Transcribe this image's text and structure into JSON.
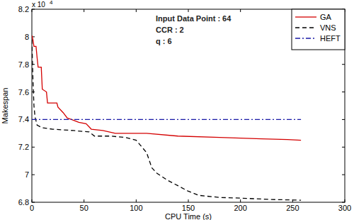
{
  "chart_data": {
    "type": "line",
    "x_label": "CPU Time (s)",
    "y_label": "Makespan",
    "y_multiplier": "x 10",
    "y_multiplier_exponent": "4",
    "annotations": [
      "Input Data Point : 64",
      "CCR : 2",
      "q : 6"
    ],
    "xlim": [
      0,
      300
    ],
    "xticks": [
      0,
      50,
      100,
      150,
      200,
      250,
      300
    ],
    "ylim": [
      6.8,
      8.2
    ],
    "yticks": [
      6.8,
      7,
      7.2,
      7.4,
      7.6,
      7.8,
      8,
      8.2
    ],
    "grid": false,
    "legend": "top-right",
    "series": [
      {
        "name": "GA",
        "color": "#d40000",
        "line_style": "solid",
        "x": [
          0,
          1,
          2,
          4,
          5,
          6,
          9,
          10,
          14,
          15,
          24,
          25,
          30,
          34,
          38,
          45,
          52,
          57,
          68,
          80,
          110,
          140,
          180,
          220,
          245,
          258
        ],
        "values": [
          8.01,
          7.98,
          7.93,
          7.93,
          7.85,
          7.78,
          7.78,
          7.62,
          7.6,
          7.52,
          7.52,
          7.49,
          7.45,
          7.41,
          7.4,
          7.38,
          7.37,
          7.33,
          7.32,
          7.3,
          7.3,
          7.28,
          7.27,
          7.26,
          7.255,
          7.25
        ]
      },
      {
        "name": "VNS",
        "color": "#000000",
        "line_style": "dashed",
        "x": [
          0,
          1,
          2,
          3,
          5,
          10,
          20,
          40,
          55,
          60,
          75,
          90,
          100,
          110,
          115,
          120,
          130,
          140,
          150,
          160,
          180,
          200,
          230,
          258
        ],
        "values": [
          7.98,
          7.7,
          7.5,
          7.42,
          7.36,
          7.34,
          7.33,
          7.32,
          7.31,
          7.28,
          7.28,
          7.27,
          7.25,
          7.16,
          7.05,
          7.01,
          6.96,
          6.92,
          6.88,
          6.85,
          6.835,
          6.83,
          6.82,
          6.815
        ]
      },
      {
        "name": "HEFT",
        "color": "#1a1aa6",
        "line_style": "dashdot",
        "x": [
          0,
          258
        ],
        "values": [
          7.4,
          7.4
        ]
      }
    ]
  }
}
